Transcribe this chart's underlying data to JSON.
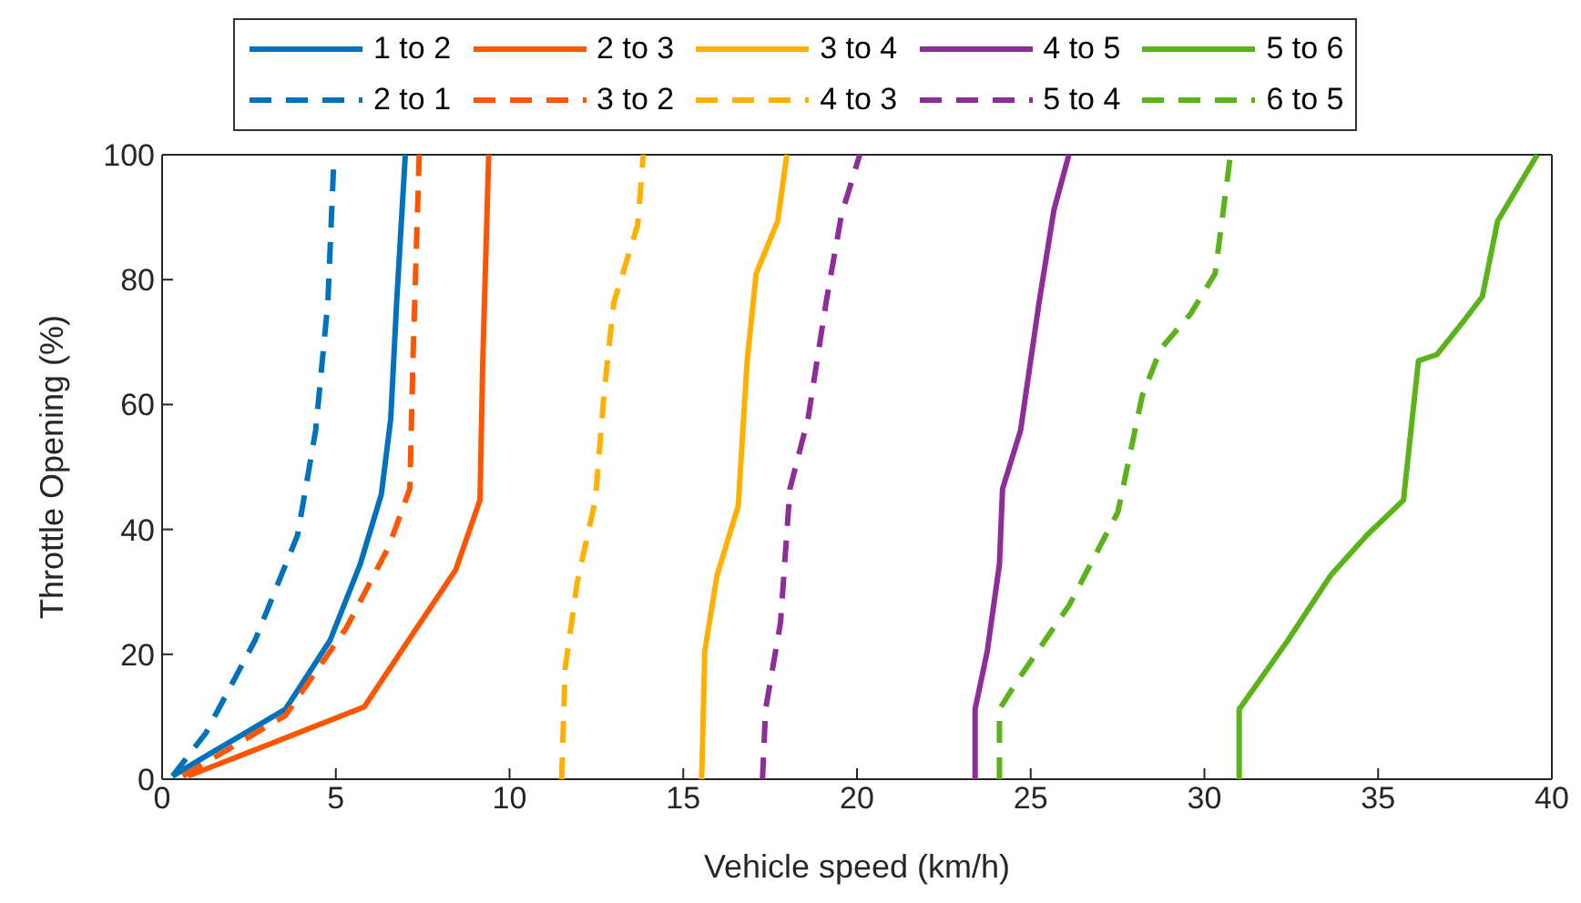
{
  "chart_data": {
    "type": "line",
    "xlabel": "Vehicle speed (km/h)",
    "ylabel": "Throttle Opening (%)",
    "xlim": [
      0,
      40
    ],
    "ylim": [
      0,
      100
    ],
    "xticks": [
      0,
      5,
      10,
      15,
      20,
      25,
      30,
      35,
      40
    ],
    "yticks": [
      0,
      20,
      40,
      60,
      80,
      100
    ],
    "legend": "top",
    "series": [
      {
        "name": "1 to 2",
        "color": "#0072bd",
        "line_style": "solid",
        "x": [
          0.3,
          1.26,
          3.55,
          4.84,
          5.7,
          6.31,
          6.58,
          6.75,
          7.0
        ],
        "values": [
          0.5,
          3.7,
          11.2,
          22.3,
          34.4,
          45.6,
          57.7,
          76.3,
          100
        ]
      },
      {
        "name": "2 to 1",
        "color": "#0072bd",
        "line_style": "dashed",
        "x": [
          0.3,
          1.26,
          2.68,
          3.9,
          4.42,
          4.77,
          4.95
        ],
        "values": [
          0.5,
          7.4,
          22.3,
          39.1,
          55.9,
          76.3,
          100
        ]
      },
      {
        "name": "2 to 3",
        "color": "#ff5500",
        "line_style": "solid",
        "x": [
          0.75,
          5.82,
          7.22,
          8.45,
          9.15,
          9.23,
          9.4
        ],
        "values": [
          0.5,
          11.6,
          23.3,
          33.5,
          44.7,
          67,
          100
        ]
      },
      {
        "name": "3 to 2",
        "color": "#ff5500",
        "line_style": "dashed",
        "x": [
          0.6,
          3.55,
          5.3,
          6.52,
          7.13,
          7.22,
          7.4
        ],
        "values": [
          0.5,
          10.2,
          24.2,
          37.2,
          46.5,
          67,
          100
        ]
      },
      {
        "name": "3 to 4",
        "color": "#ffb000",
        "line_style": "solid",
        "x": [
          15.53,
          15.62,
          15.97,
          16.58,
          16.84,
          17.1,
          17.72,
          17.98
        ],
        "values": [
          0,
          20.5,
          32.6,
          43.7,
          67,
          81,
          89.4,
          100
        ]
      },
      {
        "name": "4 to 3",
        "color": "#ffb000",
        "line_style": "dashed",
        "x": [
          11.5,
          11.6,
          11.95,
          12.47,
          12.73,
          13.0,
          13.69,
          13.85
        ],
        "values": [
          0,
          17.7,
          31.6,
          44.7,
          62.4,
          76.3,
          88.8,
          100
        ]
      },
      {
        "name": "4 to 5",
        "color": "#8e2c9a",
        "line_style": "solid",
        "x": [
          23.4,
          23.4,
          23.75,
          24.1,
          24.19,
          24.71,
          25.24,
          25.67,
          26.1
        ],
        "values": [
          0,
          11.2,
          20.5,
          34.4,
          46.5,
          55.9,
          76.3,
          91.2,
          100
        ]
      },
      {
        "name": "5 to 4",
        "color": "#8e2c9a",
        "line_style": "dashed",
        "x": [
          17.28,
          17.37,
          17.8,
          18.07,
          18.59,
          19.11,
          19.55,
          20.08
        ],
        "values": [
          0,
          11.2,
          25.1,
          46.5,
          57.7,
          76.3,
          90.3,
          100
        ]
      },
      {
        "name": "5 to 6",
        "color": "#5bb31a",
        "line_style": "solid",
        "x": [
          31.0,
          31.0,
          32.41,
          33.63,
          34.68,
          35.73,
          36.16,
          36.69,
          37.48,
          38.0,
          38.44,
          39.58
        ],
        "values": [
          0,
          11.2,
          22.3,
          32.6,
          39.1,
          44.7,
          67,
          68,
          73.5,
          77.3,
          89.4,
          100
        ]
      },
      {
        "name": "6 to 5",
        "color": "#5bb31a",
        "line_style": "dashed",
        "x": [
          24.1,
          24.1,
          24.62,
          26.11,
          27.51,
          28.21,
          28.74,
          29.6,
          30.31,
          30.75
        ],
        "values": [
          0,
          11.2,
          15.8,
          27.9,
          42.8,
          61.4,
          68.9,
          74.5,
          81,
          100
        ]
      }
    ]
  }
}
